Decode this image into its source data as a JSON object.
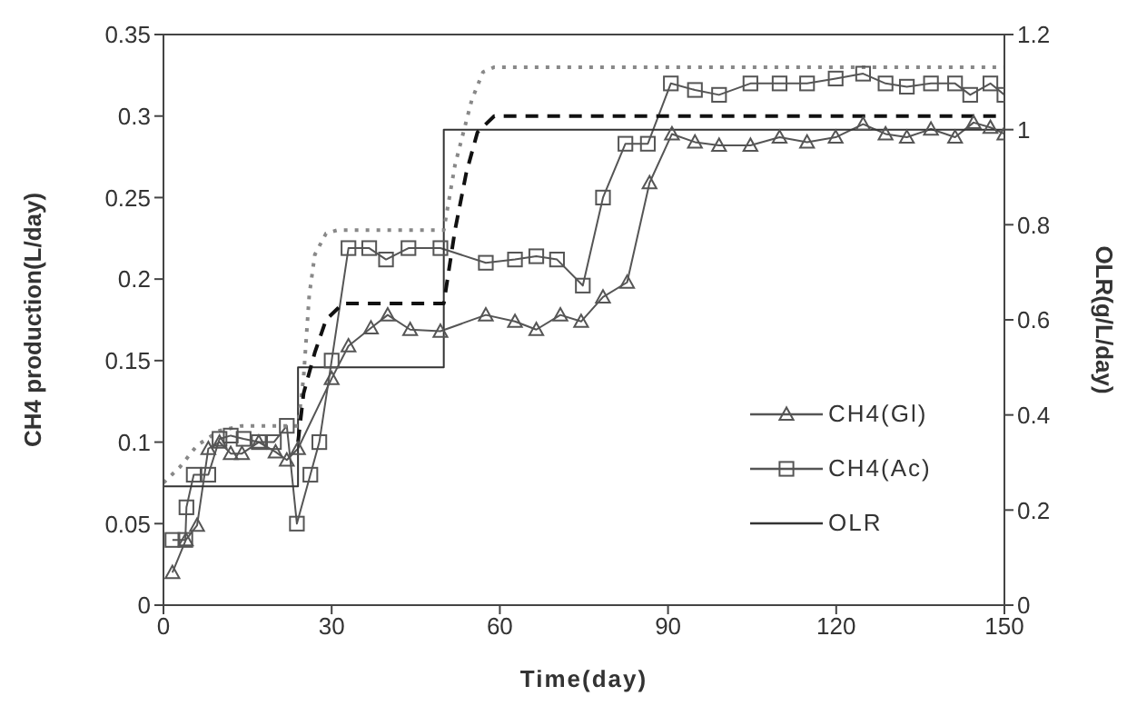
{
  "chart_data": {
    "type": "line",
    "xlabel": "Time(day)",
    "ylabel": "CH4 production(L/day)",
    "y2label": "OLR(g/L/day)",
    "xlim": [
      0,
      150
    ],
    "xticks": [
      0,
      30,
      60,
      90,
      120,
      150
    ],
    "ylim": [
      0,
      0.35
    ],
    "yticks": [
      0,
      0.05,
      0.1,
      0.15,
      0.2,
      0.25,
      0.3,
      0.35
    ],
    "y2lim": [
      0,
      1.2
    ],
    "y2ticks": [
      0,
      0.2,
      0.4,
      0.6,
      0.8,
      1,
      1.2
    ],
    "grid": false,
    "legend": "right",
    "series": [
      {
        "name": "CH4(Gl)",
        "color": "#555555",
        "marker": "triangle",
        "line_style": "solid",
        "x": [
          1.6,
          4,
          6,
          8,
          10,
          12,
          14,
          17,
          20,
          22,
          24,
          30,
          33,
          37,
          40,
          44,
          49.4,
          57.5,
          62.7,
          66.5,
          70.8,
          74.5,
          78.4,
          82.7,
          86.7,
          90.7,
          94.8,
          99.1,
          104.7,
          109.9,
          114.8,
          119.9,
          124.8,
          128.8,
          132.6,
          136.9,
          141.2,
          144.5,
          147.5,
          150
        ],
        "values": [
          0.02,
          0.04,
          0.049,
          0.096,
          0.1,
          0.093,
          0.093,
          0.1,
          0.094,
          0.089,
          0.096,
          0.139,
          0.159,
          0.17,
          0.178,
          0.169,
          0.168,
          0.178,
          0.174,
          0.169,
          0.178,
          0.174,
          0.189,
          0.198,
          0.259,
          0.289,
          0.284,
          0.282,
          0.282,
          0.287,
          0.284,
          0.287,
          0.295,
          0.289,
          0.287,
          0.292,
          0.287,
          0.296,
          0.293,
          0.289
        ]
      },
      {
        "name": "CH4(Ac)",
        "color": "#555555",
        "marker": "square",
        "line_style": "solid",
        "x": [
          1.6,
          3.9,
          4.1,
          5.4,
          8,
          10,
          12,
          14.3,
          17,
          19.7,
          22,
          23.8,
          26.2,
          27.8,
          30,
          33,
          36.7,
          39.7,
          43.7,
          49.4,
          57.5,
          62.7,
          66.5,
          70.2,
          74.8,
          78.4,
          82.4,
          86.4,
          90.5,
          94.8,
          99.1,
          104.7,
          109.9,
          114.8,
          119.9,
          124.8,
          128.8,
          132.6,
          136.9,
          141.2,
          143.9,
          147.5,
          150
        ],
        "values": [
          0.04,
          0.04,
          0.06,
          0.08,
          0.08,
          0.102,
          0.104,
          0.102,
          0.1,
          0.1,
          0.11,
          0.05,
          0.08,
          0.1,
          0.15,
          0.219,
          0.219,
          0.212,
          0.219,
          0.219,
          0.21,
          0.212,
          0.214,
          0.212,
          0.196,
          0.25,
          0.283,
          0.283,
          0.32,
          0.316,
          0.313,
          0.32,
          0.32,
          0.32,
          0.323,
          0.326,
          0.32,
          0.318,
          0.32,
          0.32,
          0.313,
          0.32,
          0.313
        ]
      },
      {
        "name": "OLR",
        "color": "#333333",
        "marker": "none",
        "line_style": "solid",
        "axis": "y2",
        "x": [
          0,
          24,
          24,
          50,
          50,
          150
        ],
        "values": [
          0.25,
          0.25,
          0.5,
          0.5,
          1,
          1
        ]
      },
      {
        "color": "#888888",
        "marker": "none",
        "line_style": "dotted",
        "x": [
          0,
          3,
          6,
          10,
          14,
          24,
          25,
          26,
          27,
          29,
          31,
          50,
          52,
          55,
          57,
          59,
          150
        ],
        "values": [
          0.075,
          0.085,
          0.098,
          0.107,
          0.11,
          0.11,
          0.14,
          0.19,
          0.215,
          0.228,
          0.23,
          0.23,
          0.27,
          0.31,
          0.327,
          0.33,
          0.33
        ]
      },
      {
        "color": "#111111",
        "marker": "none",
        "line_style": "dashed",
        "x": [
          24,
          25,
          27,
          29,
          32,
          50,
          52,
          54,
          56,
          59,
          150
        ],
        "values": [
          0.1,
          0.13,
          0.155,
          0.175,
          0.185,
          0.185,
          0.23,
          0.265,
          0.29,
          0.3,
          0.3
        ]
      }
    ]
  }
}
